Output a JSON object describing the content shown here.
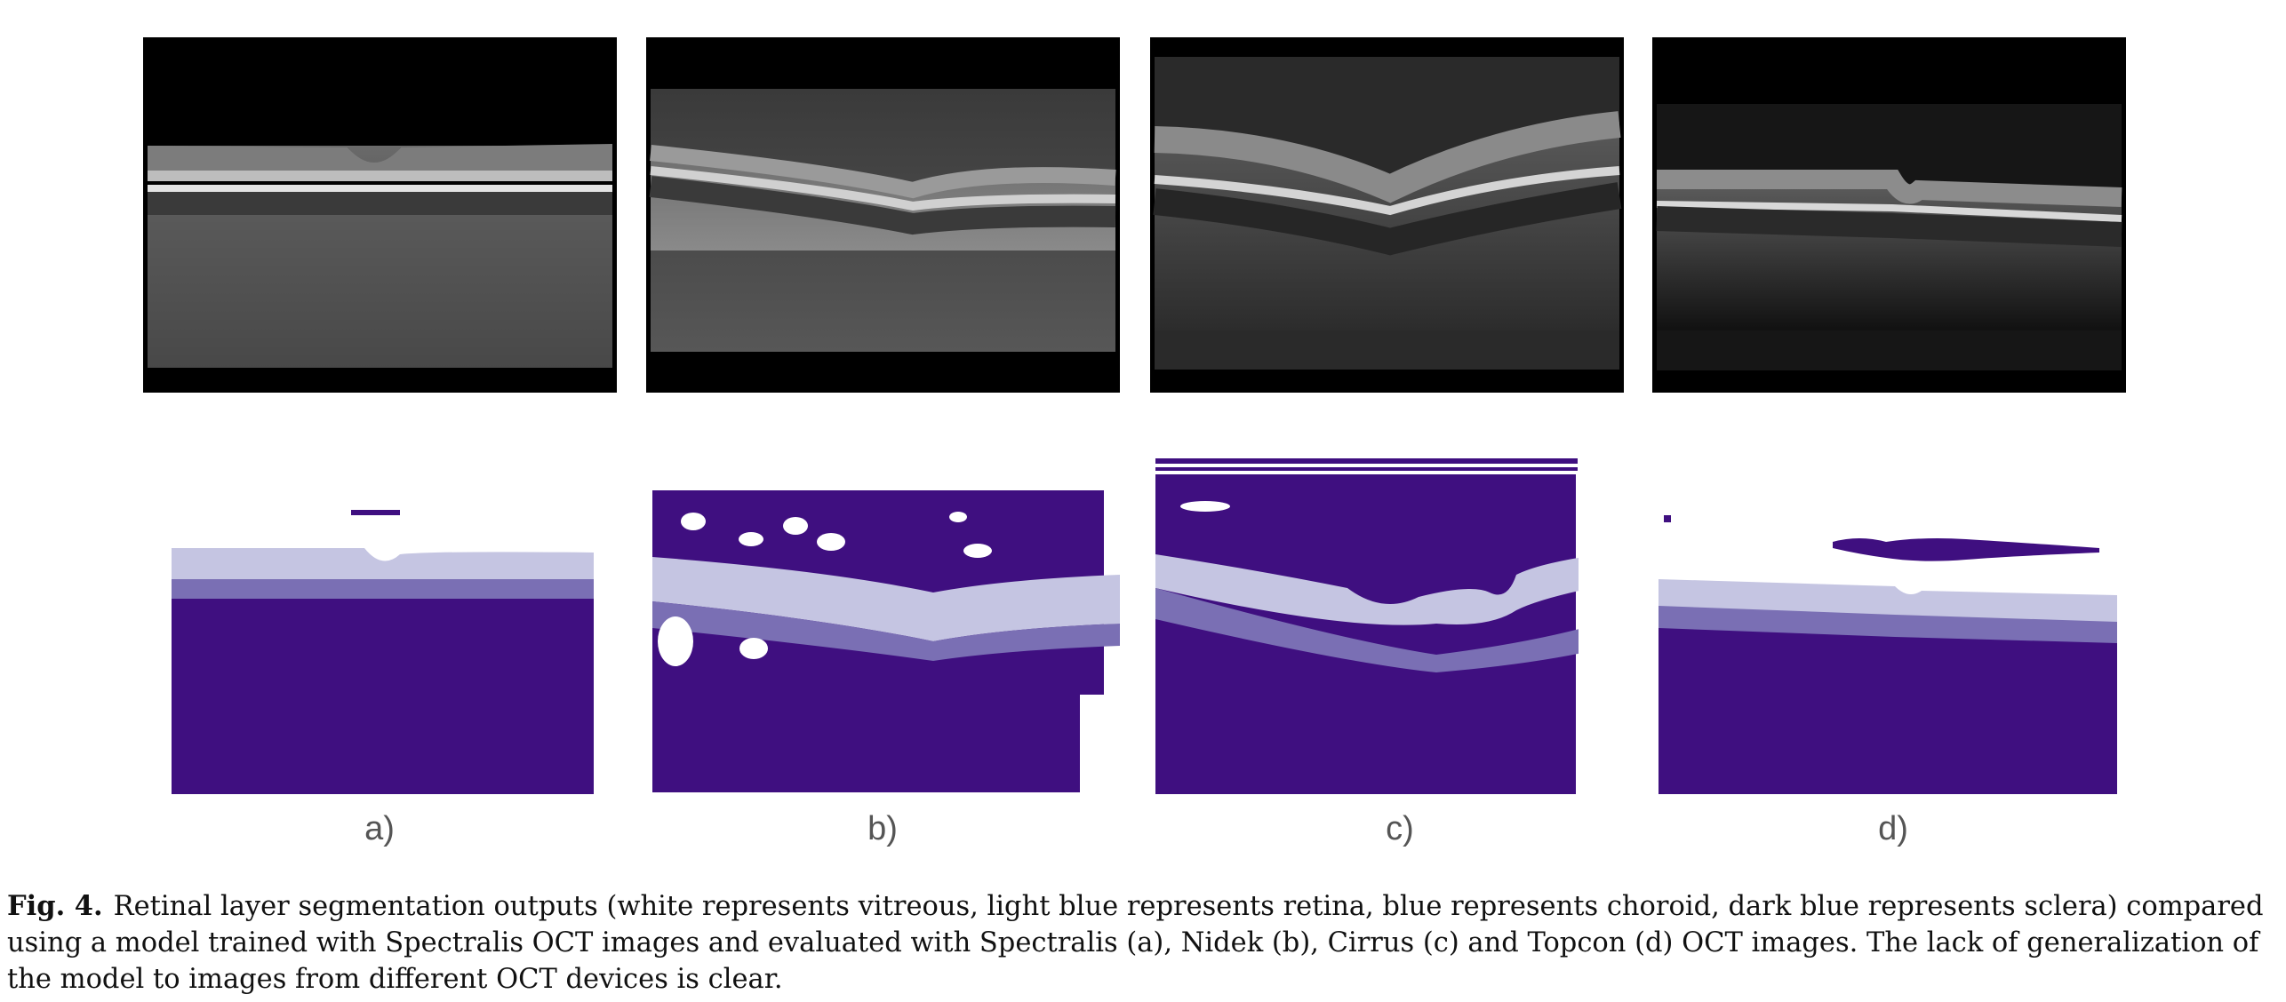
{
  "figure": {
    "fig_label": "Fig. 4.",
    "caption": "Retinal layer segmentation outputs (white represents vitreous, light blue represents retina, blue represents choroid, dark blue represents sclera) compared using a model trained with Spectralis OCT images and evaluated with Spectralis (a), Nidek (b), Cirrus (c) and Topcon (d) OCT images. The lack of generalization of the model to images from different OCT devices is clear.",
    "panel_labels": [
      "a)",
      "b)",
      "c)",
      "d)"
    ]
  },
  "colors": {
    "vitreous": "#ffffff",
    "retina": "#c5c5e2",
    "choroid": "#7a6fb4",
    "sclera": "#3f0f80"
  }
}
